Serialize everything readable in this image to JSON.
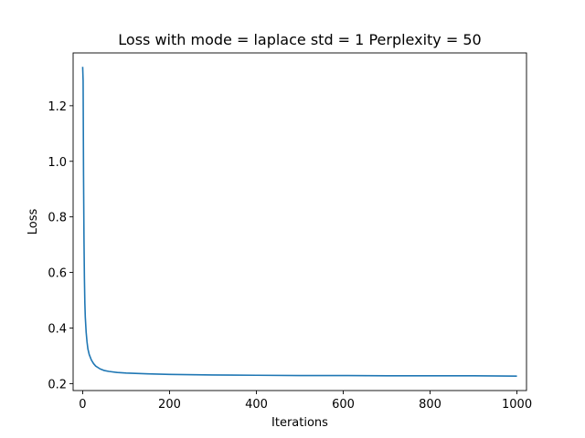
{
  "chart_data": {
    "type": "line",
    "title": "Loss with mode = laplace std = 1 Perplexity = 50",
    "xlabel": "Iterations",
    "ylabel": "Loss",
    "xlim": [
      -22,
      1022
    ],
    "ylim": [
      0.175,
      1.39
    ],
    "xticks": [
      0,
      200,
      400,
      600,
      800,
      1000
    ],
    "yticks": [
      0.2,
      0.4,
      0.6,
      0.8,
      1.0,
      1.2
    ],
    "xtick_labels": [
      "0",
      "200",
      "400",
      "600",
      "800",
      "1000"
    ],
    "ytick_labels": [
      "0.2",
      "0.4",
      "0.6",
      "0.8",
      "1.0",
      "1.2"
    ],
    "grid": false,
    "series": [
      {
        "color": "#1f77b4",
        "x": [
          0,
          1,
          2,
          3,
          4,
          5,
          6,
          8,
          10,
          12,
          15,
          20,
          25,
          30,
          40,
          50,
          60,
          80,
          100,
          150,
          200,
          300,
          400,
          500,
          600,
          700,
          800,
          900,
          1000
        ],
        "y": [
          1.34,
          1.29,
          0.95,
          0.72,
          0.58,
          0.49,
          0.44,
          0.385,
          0.35,
          0.325,
          0.305,
          0.285,
          0.272,
          0.263,
          0.253,
          0.247,
          0.244,
          0.24,
          0.238,
          0.235,
          0.233,
          0.231,
          0.23,
          0.229,
          0.229,
          0.228,
          0.228,
          0.228,
          0.227
        ]
      }
    ]
  }
}
